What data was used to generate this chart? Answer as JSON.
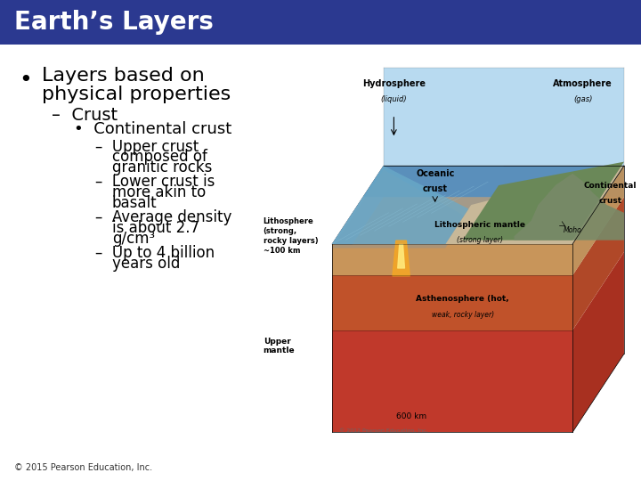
{
  "title": "Earth’s Layers",
  "title_bg_color": "#2B3990",
  "title_text_color": "#FFFFFF",
  "slide_bg_color": "#FFFFFF",
  "footer": "© 2015 Pearson Education, Inc.",
  "bullet1_line1": "Layers based on",
  "bullet1_line2": "physical properties",
  "sub1": "Crust",
  "sub2": "Continental crust",
  "detail1_lines": [
    "Upper crust",
    "composed of",
    "granitic rocks"
  ],
  "detail2_lines": [
    "Lower crust is",
    "more akin to",
    "basalt"
  ],
  "detail3_lines": [
    "Average density",
    "is about 2.7",
    "g/cm³"
  ],
  "detail4_lines": [
    "Up to 4 billion",
    "years old"
  ],
  "text_color": "#000000",
  "title_fontsize": 20,
  "bullet_fontsize": 16,
  "sub1_fontsize": 14,
  "sub2_fontsize": 13,
  "detail_fontsize": 12,
  "footer_fontsize": 7,
  "diagram_labels": {
    "hydrosphere": "Hydrosphere\n(liquid)",
    "atmosphere": "Atmosphere\n(gas)",
    "oceanic_crust": "Oceanic\ncrust",
    "continental_crust": "Continental\ncrust",
    "litho_mantle": "Lithospheric mantle\n(strong layer)",
    "asthenosphere": "Asthenosphere (hot,\nweak, rocky layer)",
    "lithosphere": "Lithosphere\n(strong,\nrocky layers)\n~100 km",
    "upper_mantle": "Upper\nmantle",
    "depth": "600 km",
    "copyright": "© 2012 Pearson Education, Inc.",
    "moho": "Moho"
  }
}
